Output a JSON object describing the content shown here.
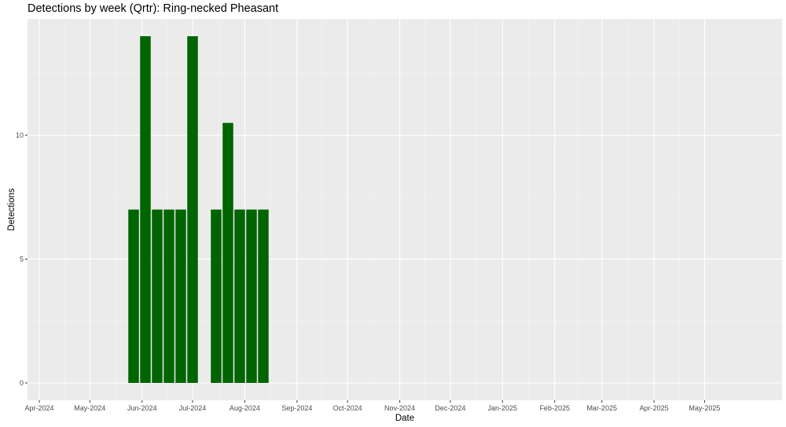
{
  "chart_data": {
    "type": "bar",
    "title": "Detections by week (Qrtr): Ring-necked Pheasant",
    "xlabel": "Date",
    "ylabel": "Detections",
    "x_axis_type": "date",
    "xlim": [
      "2024-03-25",
      "2025-06-16"
    ],
    "ylim": [
      -0.7,
      14.7
    ],
    "x_ticks": [
      {
        "date": "2024-04-01",
        "label": "Apr-2024"
      },
      {
        "date": "2024-05-01",
        "label": "May-2024"
      },
      {
        "date": "2024-06-01",
        "label": "Jun-2024"
      },
      {
        "date": "2024-07-01",
        "label": "Jul-2024"
      },
      {
        "date": "2024-08-01",
        "label": "Aug-2024"
      },
      {
        "date": "2024-09-01",
        "label": "Sep-2024"
      },
      {
        "date": "2024-10-01",
        "label": "Oct-2024"
      },
      {
        "date": "2024-11-01",
        "label": "Nov-2024"
      },
      {
        "date": "2024-12-01",
        "label": "Dec-2024"
      },
      {
        "date": "2025-01-01",
        "label": "Jan-2025"
      },
      {
        "date": "2025-02-01",
        "label": "Feb-2025"
      },
      {
        "date": "2025-03-01",
        "label": "Mar-2025"
      },
      {
        "date": "2025-04-01",
        "label": "Apr-2025"
      },
      {
        "date": "2025-05-01",
        "label": "May-2025"
      }
    ],
    "y_ticks": [
      {
        "value": 0,
        "label": "0"
      },
      {
        "value": 5,
        "label": "5"
      },
      {
        "value": 10,
        "label": "10"
      }
    ],
    "bar_width_days": 6.3,
    "x": [
      "2024-05-27",
      "2024-06-03",
      "2024-06-10",
      "2024-06-17",
      "2024-06-24",
      "2024-07-01",
      "2024-07-15",
      "2024-07-22",
      "2024-07-29",
      "2024-08-05",
      "2024-08-12"
    ],
    "values": [
      7,
      14,
      7,
      7,
      7,
      14,
      7,
      10.5,
      7,
      7,
      7
    ],
    "grid": true,
    "colors": {
      "bar": "#006400",
      "panel": "#ebebeb",
      "grid_major": "#ffffff",
      "grid_minor": "#f5f5f5",
      "tick_text": "#4d4d4d"
    }
  }
}
